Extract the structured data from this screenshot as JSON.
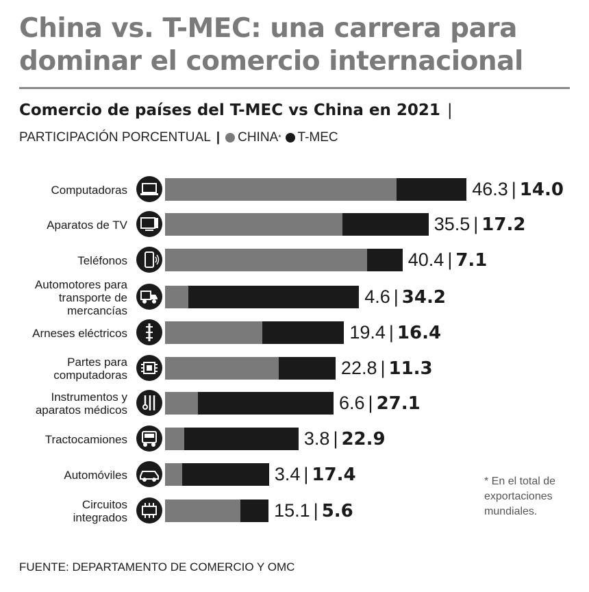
{
  "title": "China vs. T-MEC: una carrera para dominar el comercio internacional",
  "subtitle": "Comercio de países del T-MEC vs China en 2021",
  "units": "PARTICIPACIÓN PORCENTUAL",
  "legend": {
    "china": "CHINA",
    "china_mark": "*",
    "tmec": "T-MEC"
  },
  "footnote": "* En el total de exportaciones mundiales.",
  "source": "FUENTE: DEPARTAMENTO DE COMERCIO Y OMC",
  "colors": {
    "china": "#7a7a7a",
    "tmec": "#1a1a1a"
  },
  "chart_data": {
    "type": "bar",
    "orientation": "horizontal",
    "stacked": true,
    "categories": [
      "Computadoras",
      "Aparatos de TV",
      "Teléfonos",
      "Automotores para transporte de mercancías",
      "Arneses eléctricos",
      "Partes para computadoras",
      "Instrumentos y aparatos médicos",
      "Tractocamiones",
      "Automóviles",
      "Circuitos integrados"
    ],
    "category_lines": [
      [
        "Computadoras"
      ],
      [
        "Aparatos de TV"
      ],
      [
        "Teléfonos"
      ],
      [
        "Automotores para",
        "transporte de",
        "mercancías"
      ],
      [
        "Arneses eléctricos"
      ],
      [
        "Partes para",
        "computadoras"
      ],
      [
        "Instrumentos y",
        "aparatos médicos"
      ],
      [
        "Tractocamiones"
      ],
      [
        "Automóviles"
      ],
      [
        "Circuitos",
        "integrados"
      ]
    ],
    "icons": [
      "laptop-icon",
      "tv-icon",
      "phone-icon",
      "truck-icon",
      "cable-icon",
      "chip-icon",
      "medical-tools-icon",
      "tractor-truck-icon",
      "car-icon",
      "circuit-icon"
    ],
    "series": [
      {
        "name": "CHINA",
        "values": [
          46.3,
          35.5,
          40.4,
          4.6,
          19.4,
          22.8,
          6.6,
          3.8,
          3.4,
          15.1
        ]
      },
      {
        "name": "T-MEC",
        "values": [
          14.0,
          17.2,
          7.1,
          34.2,
          16.4,
          11.3,
          27.1,
          22.9,
          17.4,
          5.6
        ]
      }
    ],
    "value_labels": {
      "china": [
        "46.3",
        "35.5",
        "40.4",
        "4.6",
        "19.4",
        "22.8",
        "6.6",
        "3.8",
        "3.4",
        "15.1"
      ],
      "tmec": [
        "14.0",
        "17.2",
        "7.1",
        "34.2",
        "16.4",
        "11.3",
        "27.1",
        "22.9",
        "17.4",
        "5.6"
      ]
    }
  }
}
